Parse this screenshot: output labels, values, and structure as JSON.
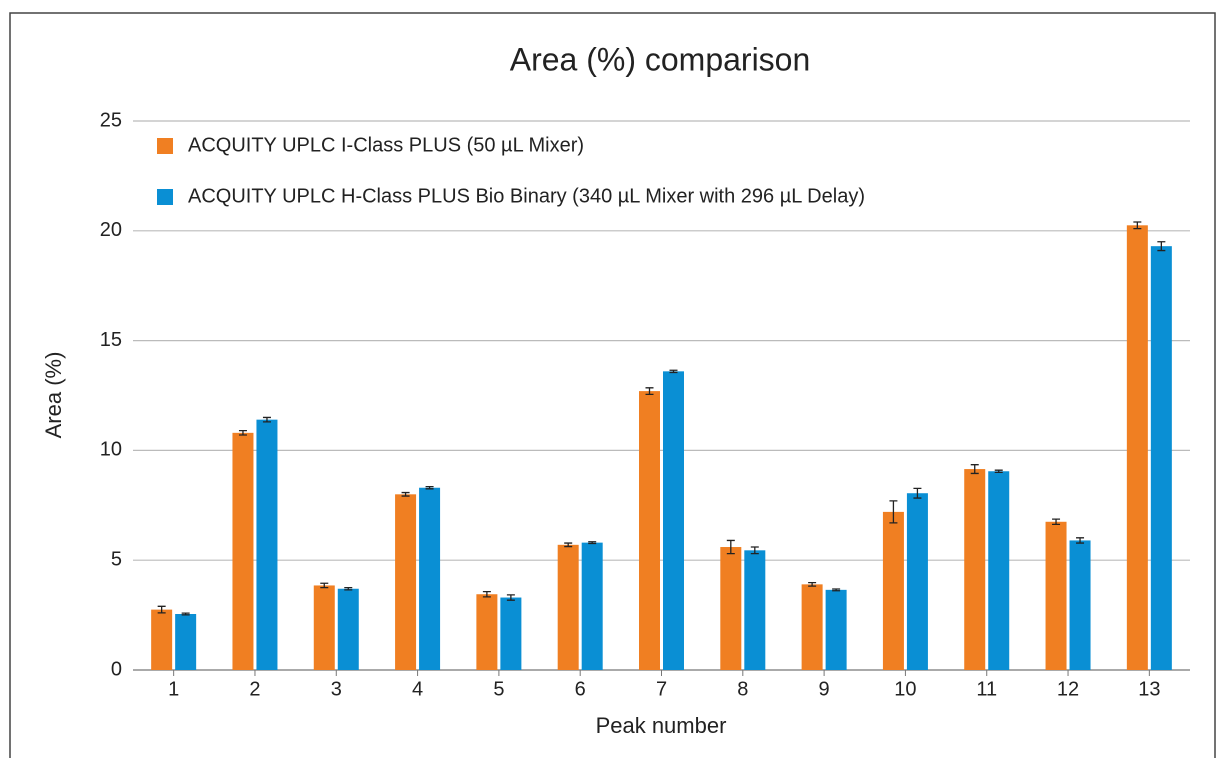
{
  "chart_data": {
    "type": "bar",
    "title": "Area (%) comparison",
    "xlabel": "Peak number",
    "ylabel": "Area (%)",
    "categories": [
      "1",
      "2",
      "3",
      "4",
      "5",
      "6",
      "7",
      "8",
      "9",
      "10",
      "11",
      "12",
      "13"
    ],
    "series": [
      {
        "name": "ACQUITY UPLC I-Class PLUS (50 µL Mixer)",
        "color": "#f07f22",
        "values": [
          2.75,
          10.8,
          3.85,
          8.0,
          3.45,
          5.7,
          12.7,
          5.6,
          3.9,
          7.2,
          9.15,
          6.75,
          20.25
        ],
        "errors": [
          0.15,
          0.1,
          0.1,
          0.08,
          0.12,
          0.08,
          0.15,
          0.3,
          0.08,
          0.5,
          0.2,
          0.12,
          0.15
        ]
      },
      {
        "name": "ACQUITY UPLC H-Class PLUS Bio Binary (340 µL Mixer with 296 µL Delay)",
        "color": "#0a8fd4",
        "values": [
          2.55,
          11.4,
          3.7,
          8.3,
          3.3,
          5.8,
          13.6,
          5.45,
          3.65,
          8.05,
          9.05,
          5.9,
          19.3
        ],
        "errors": [
          0.04,
          0.1,
          0.05,
          0.05,
          0.12,
          0.04,
          0.05,
          0.15,
          0.04,
          0.22,
          0.05,
          0.12,
          0.2
        ]
      }
    ],
    "ylim": [
      0,
      25
    ],
    "yticks": [
      0,
      5,
      10,
      15,
      20,
      25
    ],
    "grid": true,
    "legend": "top-left"
  }
}
